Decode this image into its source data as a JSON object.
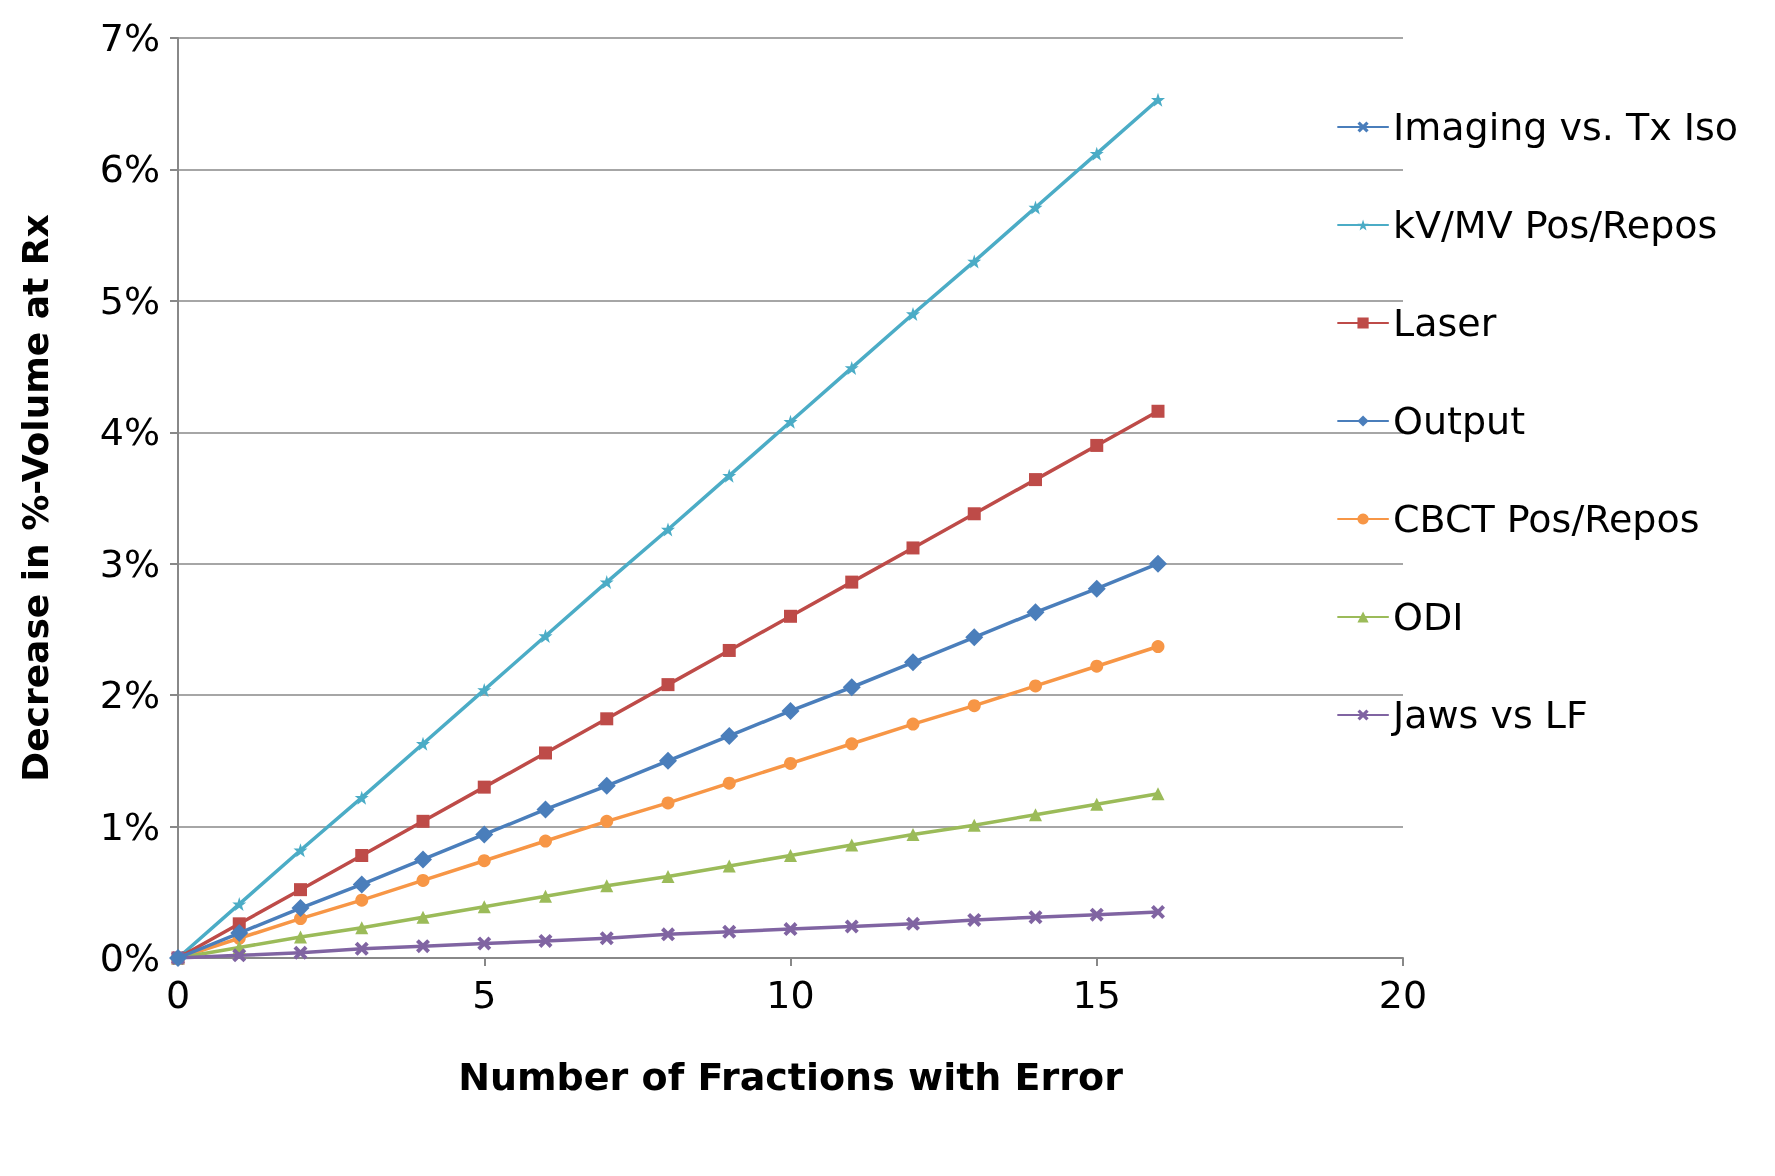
{
  "chart_data": {
    "type": "line",
    "xlabel": "Number of Fractions with Error",
    "ylabel": "Decrease in %-Volume at Rx",
    "x": [
      0,
      1,
      2,
      3,
      4,
      5,
      6,
      7,
      8,
      9,
      10,
      11,
      12,
      13,
      14,
      15,
      16
    ],
    "xlim": [
      0,
      20
    ],
    "xticks": [
      0,
      5,
      10,
      15,
      20
    ],
    "ylim": [
      0,
      7
    ],
    "yticks": [
      {
        "value": 0,
        "label": "0%"
      },
      {
        "value": 1,
        "label": "1%"
      },
      {
        "value": 2,
        "label": "2%"
      },
      {
        "value": 3,
        "label": "3%"
      },
      {
        "value": 4,
        "label": "4%"
      },
      {
        "value": 5,
        "label": "5%"
      },
      {
        "value": 6,
        "label": "6%"
      },
      {
        "value": 7,
        "label": "7%"
      }
    ],
    "grid": "y",
    "legend": "right",
    "line_style": "solid",
    "series": [
      {
        "name": "Imaging vs. Tx Iso",
        "color": "#4a7ebb",
        "marker": "cross",
        "values": [
          null,
          null,
          null,
          null,
          null,
          null,
          null,
          null,
          null,
          null,
          null,
          null,
          null,
          null,
          null,
          null,
          null
        ]
      },
      {
        "name": "kV/MV Pos/Repos",
        "color": "#4bacc6",
        "marker": "star",
        "values": [
          0,
          0.41,
          0.82,
          1.22,
          1.63,
          2.04,
          2.45,
          2.86,
          3.26,
          3.67,
          4.08,
          4.49,
          4.9,
          5.3,
          5.71,
          6.12,
          6.53
        ]
      },
      {
        "name": "Laser",
        "color": "#be4b48",
        "marker": "square",
        "values": [
          0,
          0.26,
          0.52,
          0.78,
          1.04,
          1.3,
          1.56,
          1.82,
          2.08,
          2.34,
          2.6,
          2.86,
          3.12,
          3.38,
          3.64,
          3.9,
          4.16
        ]
      },
      {
        "name": "Output",
        "color": "#4a7ebb",
        "marker": "diamond",
        "values": [
          0,
          0.19,
          0.38,
          0.56,
          0.75,
          0.94,
          1.13,
          1.31,
          1.5,
          1.69,
          1.88,
          2.06,
          2.25,
          2.44,
          2.63,
          2.81,
          3.0
        ]
      },
      {
        "name": "CBCT Pos/Repos",
        "color": "#f79646",
        "marker": "circle",
        "values": [
          0,
          0.15,
          0.3,
          0.44,
          0.59,
          0.74,
          0.89,
          1.04,
          1.18,
          1.33,
          1.48,
          1.63,
          1.78,
          1.92,
          2.07,
          2.22,
          2.37
        ]
      },
      {
        "name": "ODI",
        "color": "#9bbb59",
        "marker": "triangle",
        "values": [
          0,
          0.08,
          0.16,
          0.23,
          0.31,
          0.39,
          0.47,
          0.55,
          0.62,
          0.7,
          0.78,
          0.86,
          0.94,
          1.01,
          1.09,
          1.17,
          1.25
        ]
      },
      {
        "name": "Jaws vs LF",
        "color": "#8064a2",
        "marker": "cross",
        "values": [
          0,
          0.02,
          0.04,
          0.07,
          0.09,
          0.11,
          0.13,
          0.15,
          0.18,
          0.2,
          0.22,
          0.24,
          0.26,
          0.29,
          0.31,
          0.33,
          0.35
        ]
      }
    ]
  }
}
